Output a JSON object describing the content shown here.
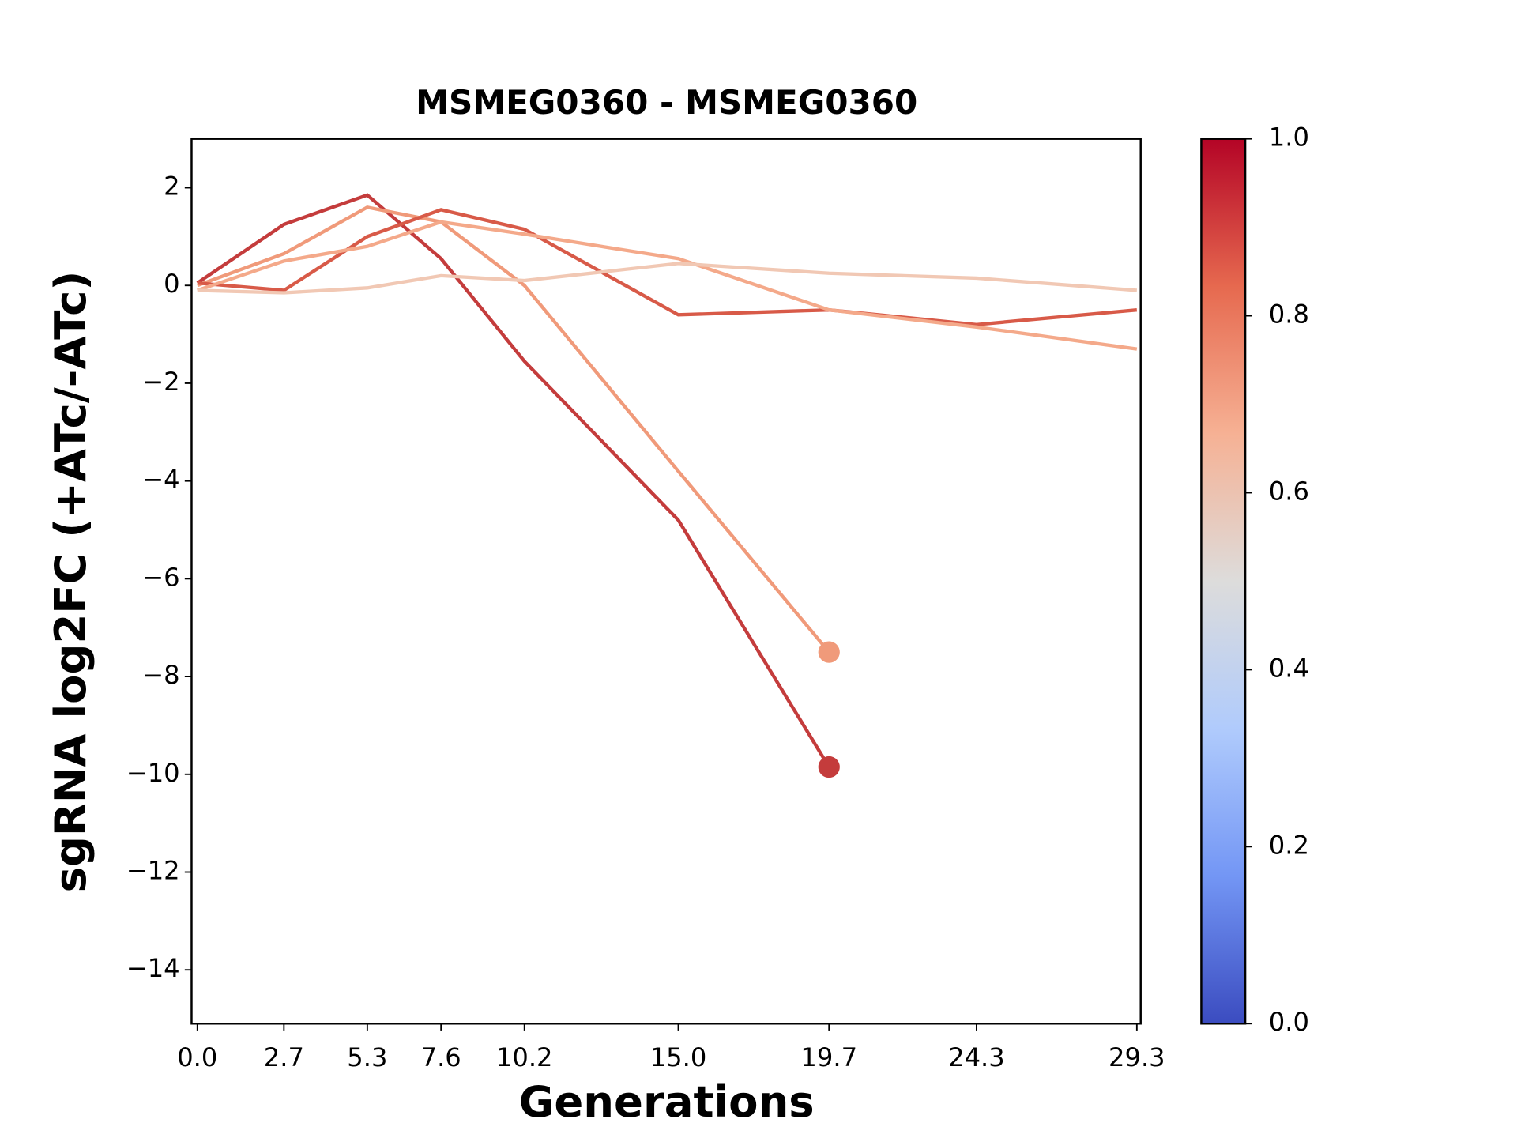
{
  "chart_data": {
    "type": "line",
    "title": "MSMEG0360 - MSMEG0360",
    "xlabel": "Generations",
    "ylabel": "sgRNA log2FC (+ATc/-ATc)",
    "x": [
      0,
      2.7,
      5.3,
      7.6,
      10.2,
      15,
      19.7,
      24.3,
      29.3
    ],
    "series": [
      {
        "color": "#c43c3c",
        "marker": true,
        "values": [
          0.05,
          1.25,
          1.85,
          0.55,
          -1.55,
          -4.8,
          -9.85,
          null,
          null
        ]
      },
      {
        "color": "#f09a7a",
        "marker": true,
        "values": [
          0.0,
          0.65,
          1.6,
          1.3,
          0.0,
          -3.8,
          -7.5,
          null,
          null
        ]
      },
      {
        "color": "#d85a48",
        "values": [
          0.05,
          -0.1,
          1.0,
          1.55,
          1.15,
          -0.6,
          -0.5,
          -0.8,
          -0.5
        ]
      },
      {
        "color": "#f4a98a",
        "values": [
          -0.1,
          0.5,
          0.8,
          1.3,
          1.05,
          0.55,
          -0.5,
          -0.85,
          -1.3
        ]
      },
      {
        "color": "#f1c8b4",
        "values": [
          -0.1,
          -0.15,
          -0.05,
          0.2,
          0.1,
          0.45,
          0.25,
          0.15,
          -0.1
        ]
      }
    ],
    "xlim": [
      -0.18,
      29.42
    ],
    "xticks": [
      {
        "value": 0,
        "label": "0.0"
      },
      2.7,
      5.3,
      7.6,
      10.2,
      {
        "value": 15,
        "label": "15.0"
      },
      19.7,
      24.3,
      29.3
    ],
    "ylim": [
      -15.1,
      3
    ],
    "yticks": [
      2,
      0,
      {
        "value": -2,
        "label": "−2"
      },
      {
        "value": -4,
        "label": "−4"
      },
      {
        "value": -6,
        "label": "−6"
      },
      {
        "value": -8,
        "label": "−8"
      },
      {
        "value": -10,
        "label": "−10"
      },
      {
        "value": -12,
        "label": "−12"
      },
      {
        "value": -14,
        "label": "−14"
      }
    ],
    "colorbar": {
      "lim": [
        0,
        1
      ],
      "ticks": [
        {
          "value": 0,
          "label": "0.0"
        },
        0.2,
        0.4,
        0.6,
        0.8,
        {
          "value": 1,
          "label": "1.0"
        }
      ],
      "colors": [
        "#3b4cc0",
        "#7396f5",
        "#b0cbfc",
        "#dddcdb",
        "#f6b194",
        "#e6694f",
        "#b40426"
      ]
    }
  }
}
